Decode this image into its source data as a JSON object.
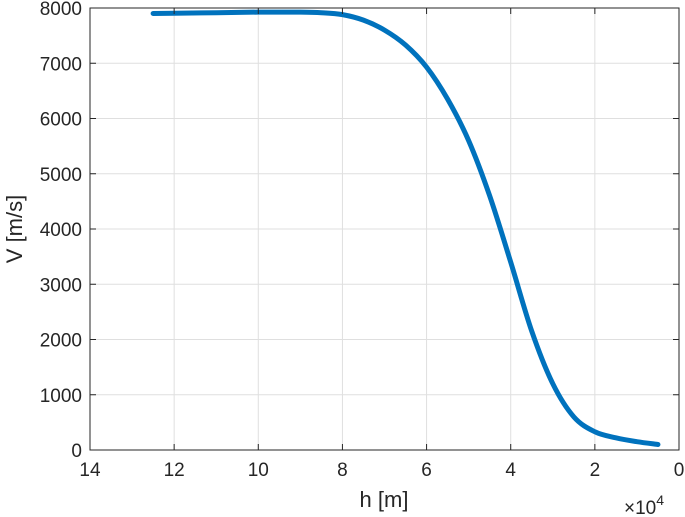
{
  "chart_data": {
    "type": "line",
    "xlabel": "h [m]",
    "ylabel": "V [m/s]",
    "x_exponent_label": "×10",
    "x_exponent_power": "4",
    "xlim": [
      0,
      14
    ],
    "ylim": [
      0,
      8000
    ],
    "x_reversed": true,
    "grid": true,
    "x_ticks": [
      14,
      12,
      10,
      8,
      6,
      4,
      2,
      0
    ],
    "y_ticks": [
      0,
      1000,
      2000,
      3000,
      4000,
      5000,
      6000,
      7000,
      8000
    ],
    "x_tick_labels": [
      "14",
      "12",
      "10",
      "8",
      "6",
      "4",
      "2",
      "0"
    ],
    "y_tick_labels": [
      "0",
      "1000",
      "2000",
      "3000",
      "4000",
      "5000",
      "6000",
      "7000",
      "8000"
    ],
    "line_color": "#0072BD",
    "series": [
      {
        "x": [
          12.5,
          12.0,
          11.0,
          10.0,
          9.0,
          8.5,
          8.0,
          7.5,
          7.0,
          6.5,
          6.0,
          5.5,
          5.0,
          4.5,
          4.0,
          3.5,
          3.0,
          2.5,
          2.0,
          1.5,
          1.0,
          0.5
        ],
        "y": [
          7900,
          7905,
          7915,
          7925,
          7925,
          7915,
          7880,
          7780,
          7600,
          7330,
          6930,
          6350,
          5600,
          4600,
          3400,
          2150,
          1200,
          600,
          330,
          220,
          150,
          100
        ]
      }
    ]
  }
}
